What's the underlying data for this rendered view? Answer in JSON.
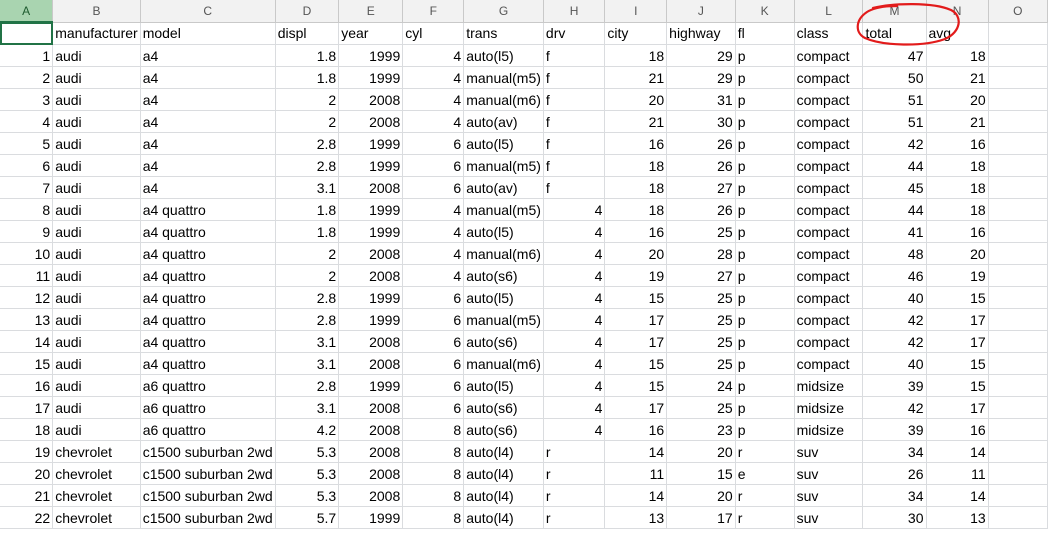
{
  "column_letters": [
    "A",
    "B",
    "C",
    "D",
    "E",
    "F",
    "G",
    "H",
    "I",
    "J",
    "K",
    "L",
    "M",
    "N",
    "O"
  ],
  "header_row": [
    "",
    "manufacturer",
    "model",
    "displ",
    "year",
    "cyl",
    "trans",
    "drv",
    "city",
    "highway",
    "fl",
    "class",
    "total",
    "avg",
    ""
  ],
  "rows": [
    [
      "1",
      "audi",
      "a4",
      "1.8",
      "1999",
      "4",
      "auto(l5)",
      "f",
      "",
      "18",
      "29",
      "p",
      "compact",
      "47",
      "18"
    ],
    [
      "2",
      "audi",
      "a4",
      "1.8",
      "1999",
      "4",
      "manual(m5)",
      "f",
      "",
      "21",
      "29",
      "p",
      "compact",
      "50",
      "21"
    ],
    [
      "3",
      "audi",
      "a4",
      "2",
      "2008",
      "4",
      "manual(m6)",
      "f",
      "",
      "20",
      "31",
      "p",
      "compact",
      "51",
      "20"
    ],
    [
      "4",
      "audi",
      "a4",
      "2",
      "2008",
      "4",
      "auto(av)",
      "f",
      "",
      "21",
      "30",
      "p",
      "compact",
      "51",
      "21"
    ],
    [
      "5",
      "audi",
      "a4",
      "2.8",
      "1999",
      "6",
      "auto(l5)",
      "f",
      "",
      "16",
      "26",
      "p",
      "compact",
      "42",
      "16"
    ],
    [
      "6",
      "audi",
      "a4",
      "2.8",
      "1999",
      "6",
      "manual(m5)",
      "f",
      "",
      "18",
      "26",
      "p",
      "compact",
      "44",
      "18"
    ],
    [
      "7",
      "audi",
      "a4",
      "3.1",
      "2008",
      "6",
      "auto(av)",
      "f",
      "",
      "18",
      "27",
      "p",
      "compact",
      "45",
      "18"
    ],
    [
      "8",
      "audi",
      "a4 quattro",
      "1.8",
      "1999",
      "4",
      "manual(m5)",
      "",
      "4",
      "18",
      "26",
      "p",
      "compact",
      "44",
      "18"
    ],
    [
      "9",
      "audi",
      "a4 quattro",
      "1.8",
      "1999",
      "4",
      "auto(l5)",
      "",
      "4",
      "16",
      "25",
      "p",
      "compact",
      "41",
      "16"
    ],
    [
      "10",
      "audi",
      "a4 quattro",
      "2",
      "2008",
      "4",
      "manual(m6)",
      "",
      "4",
      "20",
      "28",
      "p",
      "compact",
      "48",
      "20"
    ],
    [
      "11",
      "audi",
      "a4 quattro",
      "2",
      "2008",
      "4",
      "auto(s6)",
      "",
      "4",
      "19",
      "27",
      "p",
      "compact",
      "46",
      "19"
    ],
    [
      "12",
      "audi",
      "a4 quattro",
      "2.8",
      "1999",
      "6",
      "auto(l5)",
      "",
      "4",
      "15",
      "25",
      "p",
      "compact",
      "40",
      "15"
    ],
    [
      "13",
      "audi",
      "a4 quattro",
      "2.8",
      "1999",
      "6",
      "manual(m5)",
      "",
      "4",
      "17",
      "25",
      "p",
      "compact",
      "42",
      "17"
    ],
    [
      "14",
      "audi",
      "a4 quattro",
      "3.1",
      "2008",
      "6",
      "auto(s6)",
      "",
      "4",
      "17",
      "25",
      "p",
      "compact",
      "42",
      "17"
    ],
    [
      "15",
      "audi",
      "a4 quattro",
      "3.1",
      "2008",
      "6",
      "manual(m6)",
      "",
      "4",
      "15",
      "25",
      "p",
      "compact",
      "40",
      "15"
    ],
    [
      "16",
      "audi",
      "a6 quattro",
      "2.8",
      "1999",
      "6",
      "auto(l5)",
      "",
      "4",
      "15",
      "24",
      "p",
      "midsize",
      "39",
      "15"
    ],
    [
      "17",
      "audi",
      "a6 quattro",
      "3.1",
      "2008",
      "6",
      "auto(s6)",
      "",
      "4",
      "17",
      "25",
      "p",
      "midsize",
      "42",
      "17"
    ],
    [
      "18",
      "audi",
      "a6 quattro",
      "4.2",
      "2008",
      "8",
      "auto(s6)",
      "",
      "4",
      "16",
      "23",
      "p",
      "midsize",
      "39",
      "16"
    ],
    [
      "19",
      "chevrolet",
      "c1500 suburban 2wd",
      "5.3",
      "2008",
      "8",
      "auto(l4)",
      "r",
      "",
      "14",
      "20",
      "r",
      "suv",
      "34",
      "14"
    ],
    [
      "20",
      "chevrolet",
      "c1500 suburban 2wd",
      "5.3",
      "2008",
      "8",
      "auto(l4)",
      "r",
      "",
      "11",
      "15",
      "e",
      "suv",
      "26",
      "11"
    ],
    [
      "21",
      "chevrolet",
      "c1500 suburban 2wd",
      "5.3",
      "2008",
      "8",
      "auto(l4)",
      "r",
      "",
      "14",
      "20",
      "r",
      "suv",
      "34",
      "14"
    ],
    [
      "22",
      "chevrolet",
      "c1500 suburban 2wd",
      "5.7",
      "1999",
      "8",
      "auto(l4)",
      "r",
      "",
      "13",
      "17",
      "r",
      "suv",
      "30",
      "13"
    ]
  ],
  "annotation": {
    "color": "#e21b1b",
    "shape": "freehand-circle",
    "target_columns": [
      "total",
      "avg"
    ]
  }
}
